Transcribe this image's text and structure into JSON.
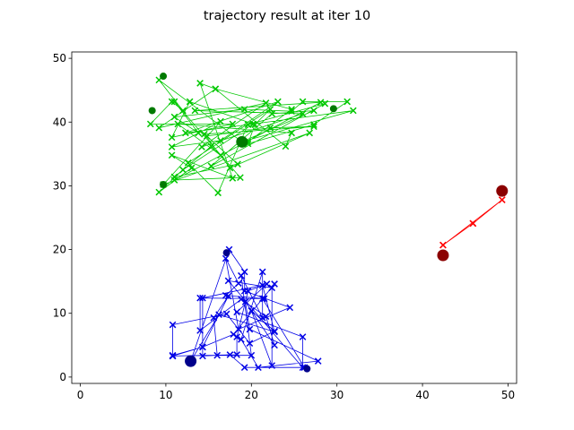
{
  "chart_data": {
    "type": "scatter",
    "title": "trajectory result at iter 10",
    "xlabel": "",
    "ylabel": "",
    "xlim": [
      -1,
      51
    ],
    "ylim": [
      -1,
      51
    ],
    "xticks": [
      "0",
      "10",
      "20",
      "30",
      "40",
      "50"
    ],
    "yticks": [
      "0",
      "10",
      "20",
      "30",
      "40",
      "50"
    ],
    "xtick_values": [
      0,
      10,
      20,
      30,
      40,
      50
    ],
    "ytick_values": [
      0,
      10,
      20,
      30,
      40,
      50
    ],
    "grid": false,
    "legend": "none",
    "series": [
      {
        "color": "#00c800",
        "dark_color": "#007a00",
        "large_dots": [
          [
            18.9,
            36.9
          ]
        ],
        "small_dots": [
          [
            9.7,
            47.2
          ],
          [
            8.4,
            41.8
          ],
          [
            29.6,
            42.1
          ],
          [
            9.7,
            30.2
          ]
        ],
        "path": [
          [
            18.9,
            36.9
          ],
          [
            9.2,
            46.6
          ],
          [
            12.0,
            41.8
          ],
          [
            10.7,
            43.2
          ],
          [
            8.2,
            39.7
          ],
          [
            17.8,
            39.7
          ],
          [
            10.7,
            37.6
          ],
          [
            12.8,
            43.2
          ],
          [
            20.2,
            39.7
          ],
          [
            12.0,
            32.5
          ],
          [
            9.2,
            29.0
          ],
          [
            13.0,
            32.8
          ],
          [
            10.7,
            34.8
          ],
          [
            17.8,
            31.2
          ],
          [
            14.0,
            46.1
          ],
          [
            15.8,
            45.2
          ],
          [
            9.2,
            39.1
          ],
          [
            21.7,
            43.0
          ],
          [
            14.2,
            36.1
          ],
          [
            26.0,
            41.3
          ],
          [
            13.4,
            41.8
          ],
          [
            28.1,
            43.1
          ],
          [
            11.0,
            30.9
          ],
          [
            18.7,
            31.3
          ],
          [
            11.0,
            43.2
          ],
          [
            13.8,
            38.3
          ],
          [
            11.0,
            40.8
          ],
          [
            19.2,
            42.0
          ],
          [
            24.7,
            41.7
          ],
          [
            26.0,
            43.2
          ],
          [
            31.2,
            43.2
          ],
          [
            27.3,
            39.6
          ],
          [
            19.6,
            36.6
          ],
          [
            20.4,
            39.6
          ],
          [
            22.2,
            42.0
          ],
          [
            12.6,
            33.6
          ],
          [
            16.1,
            28.9
          ],
          [
            19.6,
            39.6
          ],
          [
            28.6,
            42.9
          ],
          [
            15.3,
            33.1
          ],
          [
            22.4,
            41.3
          ],
          [
            27.3,
            41.8
          ],
          [
            18.9,
            36.9
          ],
          [
            31.9,
            41.8
          ],
          [
            12.3,
            38.3
          ],
          [
            23.1,
            43.2
          ],
          [
            16.4,
            37.1
          ],
          [
            10.7,
            36.1
          ],
          [
            16.4,
            40.1
          ],
          [
            9.7,
            30.2
          ],
          [
            26.8,
            38.3
          ],
          [
            17.5,
            32.8
          ],
          [
            14.5,
            38.1
          ],
          [
            27.3,
            39.3
          ],
          [
            22.2,
            39.1
          ],
          [
            14.8,
            37.8
          ],
          [
            18.4,
            33.4
          ],
          [
            11.0,
            31.4
          ],
          [
            15.3,
            36.2
          ],
          [
            16.4,
            34.8
          ],
          [
            11.4,
            39.7
          ],
          [
            24.7,
            38.3
          ],
          [
            24.0,
            36.2
          ],
          [
            15.8,
            45.2
          ],
          [
            24.7,
            42.0
          ],
          [
            19.6,
            36.9
          ]
        ]
      },
      {
        "color": "#0000e6",
        "dark_color": "#00008b",
        "large_dots": [
          [
            12.9,
            2.5
          ]
        ],
        "small_dots": [
          [
            17.1,
            19.5
          ],
          [
            26.5,
            1.3
          ]
        ],
        "path": [
          [
            12.9,
            2.5
          ],
          [
            17.4,
            20.0
          ],
          [
            19.2,
            16.5
          ],
          [
            19.2,
            13.5
          ],
          [
            24.5,
            10.9
          ],
          [
            18.5,
            7.5
          ],
          [
            17.0,
            18.6
          ],
          [
            18.5,
            14.7
          ],
          [
            17.0,
            12.8
          ],
          [
            21.5,
            12.3
          ],
          [
            14.0,
            12.4
          ],
          [
            14.0,
            7.3
          ],
          [
            18.8,
            12.2
          ],
          [
            21.7,
            9.5
          ],
          [
            22.7,
            5.0
          ],
          [
            19.3,
            11.8
          ],
          [
            19.8,
            7.5
          ],
          [
            27.8,
            2.5
          ],
          [
            20.8,
            1.5
          ],
          [
            18.8,
            5.9
          ],
          [
            21.3,
            16.5
          ],
          [
            21.3,
            9.3
          ],
          [
            18.8,
            15.9
          ],
          [
            20.0,
            3.4
          ],
          [
            16.0,
            3.4
          ],
          [
            15.6,
            9.3
          ],
          [
            17.3,
            12.7
          ],
          [
            14.3,
            4.7
          ],
          [
            10.8,
            3.4
          ],
          [
            10.8,
            3.3
          ],
          [
            18.3,
            3.5
          ],
          [
            18.3,
            6.3
          ],
          [
            19.6,
            13.5
          ],
          [
            21.8,
            14.6
          ],
          [
            18.3,
            10.2
          ],
          [
            26.0,
            6.3
          ],
          [
            26.0,
            1.5
          ],
          [
            17.3,
            15.1
          ],
          [
            22.4,
            14.0
          ],
          [
            22.4,
            1.8
          ],
          [
            20.0,
            10.4
          ],
          [
            22.7,
            7.2
          ],
          [
            19.8,
            5.3
          ],
          [
            17.1,
            9.9
          ],
          [
            10.8,
            8.2
          ],
          [
            10.8,
            3.3
          ],
          [
            14.3,
            4.7
          ],
          [
            17.9,
            6.7
          ],
          [
            22.7,
            14.6
          ],
          [
            21.3,
            12.3
          ],
          [
            26.2,
            1.5
          ],
          [
            19.2,
            1.5
          ],
          [
            17.5,
            3.5
          ],
          [
            14.3,
            3.3
          ],
          [
            14.3,
            12.4
          ],
          [
            21.3,
            14.4
          ],
          [
            22.7,
            7.1
          ],
          [
            16.2,
            9.8
          ],
          [
            12.9,
            2.5
          ]
        ]
      },
      {
        "color": "#ff0000",
        "dark_color": "#8b0000",
        "large_dots": [
          [
            49.3,
            29.2
          ],
          [
            42.4,
            19.1
          ]
        ],
        "small_dots": [],
        "path": [
          [
            42.4,
            20.7
          ],
          [
            45.9,
            24.1
          ],
          [
            49.3,
            27.8
          ],
          [
            42.4,
            20.7
          ],
          [
            45.9,
            24.1
          ],
          [
            49.3,
            27.8
          ]
        ]
      }
    ]
  }
}
